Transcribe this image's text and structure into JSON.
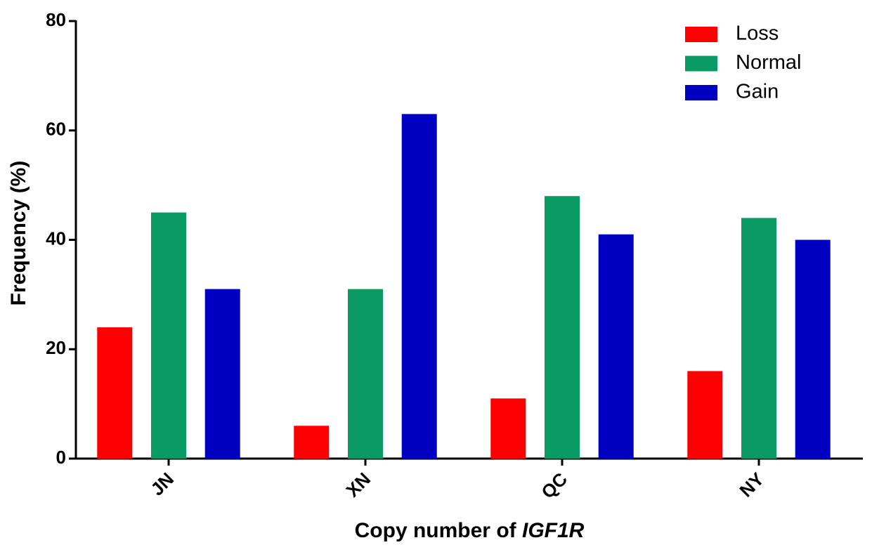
{
  "chart_data": {
    "type": "bar",
    "y_label": "Frequency (%)",
    "x_label": [
      "Copy number of",
      "IGF1R"
    ],
    "categories": [
      "JN",
      "XN",
      "QC",
      "NY"
    ],
    "series": [
      {
        "name": "Loss",
        "color": "#ff0000",
        "values": [
          24,
          6,
          11,
          16
        ]
      },
      {
        "name": "Normal",
        "color": "#0a9a64",
        "values": [
          45,
          31,
          48,
          44
        ]
      },
      {
        "name": "Gain",
        "color": "#0000c0",
        "values": [
          31,
          63,
          41,
          40
        ]
      }
    ],
    "ylim": [
      0,
      80
    ],
    "yticks": [
      0,
      20,
      40,
      60,
      80
    ],
    "legend": "top-right"
  }
}
